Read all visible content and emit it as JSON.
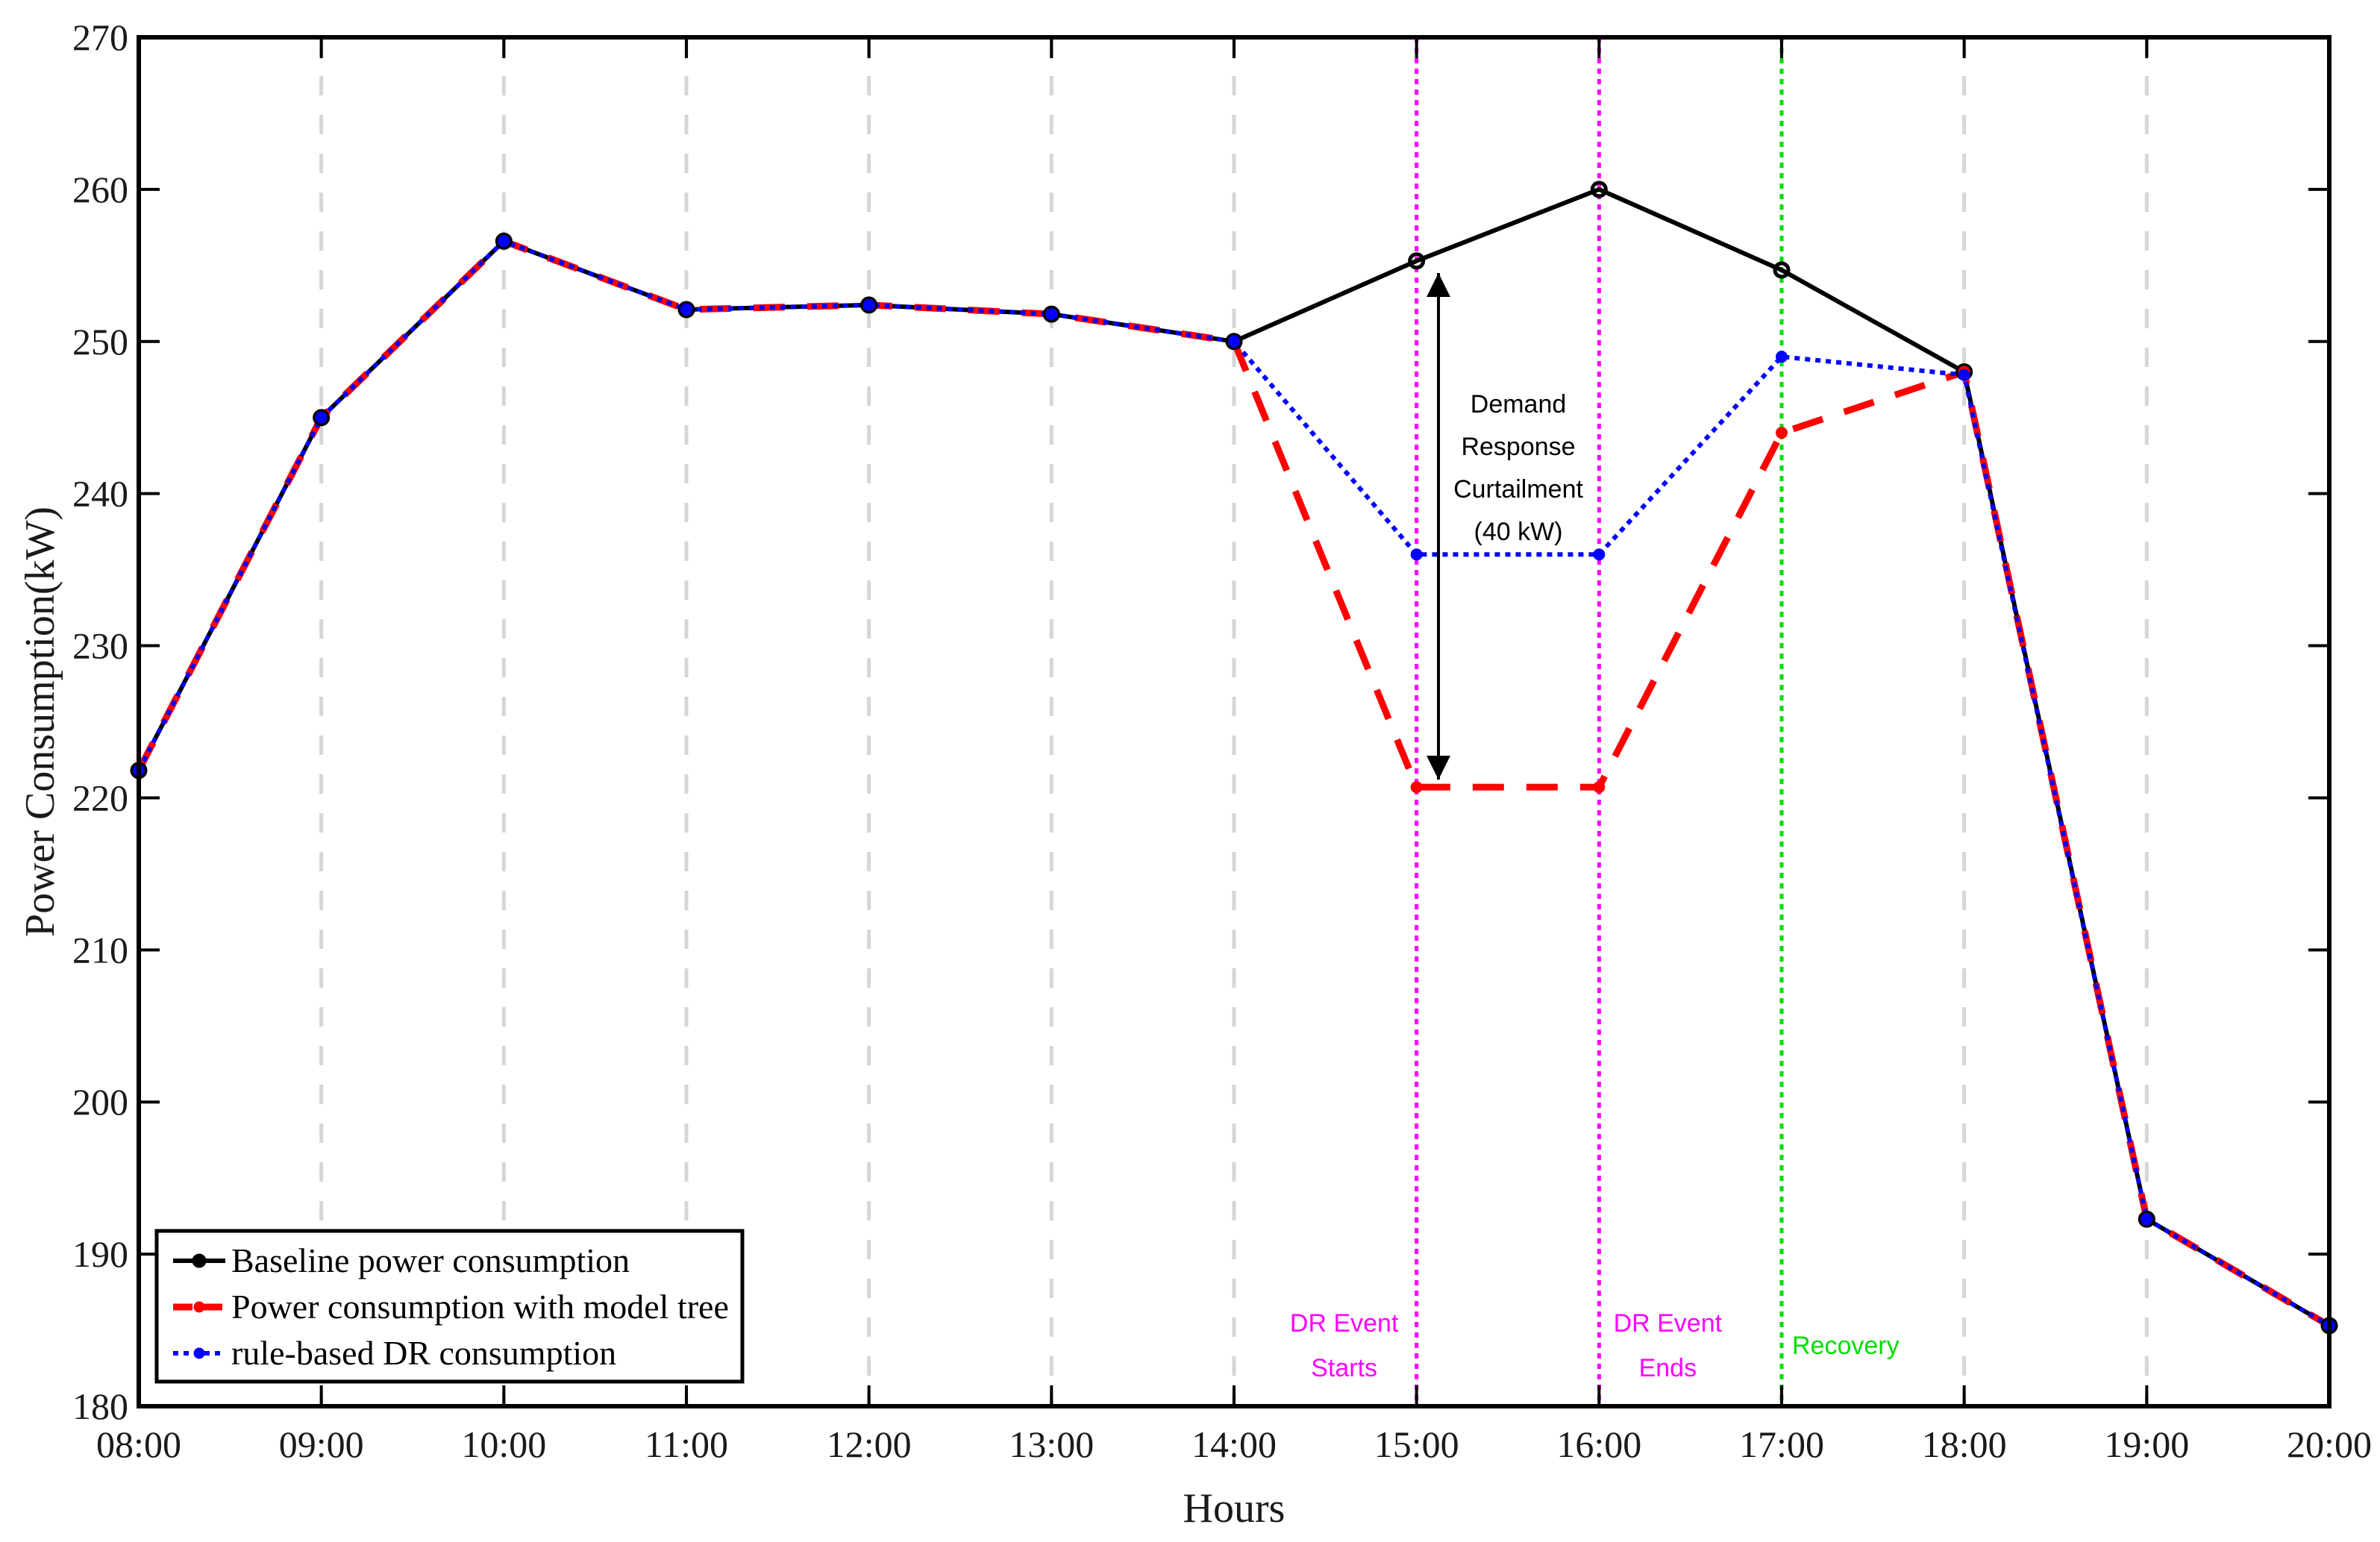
{
  "chart_data": {
    "type": "line",
    "title": "",
    "xlabel": "Hours",
    "ylabel": "Power Consumption(kW)",
    "categories": [
      "08:00",
      "09:00",
      "10:00",
      "11:00",
      "12:00",
      "13:00",
      "14:00",
      "15:00",
      "16:00",
      "17:00",
      "18:00",
      "19:00",
      "20:00"
    ],
    "ylim": [
      180,
      270
    ],
    "yticks": [
      180,
      190,
      200,
      210,
      220,
      230,
      240,
      250,
      260,
      270
    ],
    "grid": "vertical dashed",
    "series": [
      {
        "name": "Baseline power consumption",
        "color": "#000000",
        "style": "solid",
        "values": [
          221.8,
          245.0,
          256.6,
          252.1,
          252.4,
          251.8,
          250.0,
          255.3,
          260.0,
          254.7,
          248.0,
          192.3,
          185.3
        ]
      },
      {
        "name": "Power consumption with model tree",
        "color": "#ff0000",
        "style": "dashed",
        "values": [
          221.8,
          245.0,
          256.6,
          252.1,
          252.4,
          251.8,
          250.0,
          220.7,
          220.7,
          244.0,
          248.0,
          192.3,
          185.3
        ]
      },
      {
        "name": "rule-based DR consumption",
        "color": "#0000ff",
        "style": "dotted",
        "values": [
          221.8,
          245.0,
          256.6,
          252.1,
          252.4,
          251.8,
          250.0,
          236.0,
          236.0,
          249.0,
          247.8,
          192.3,
          185.3
        ]
      }
    ],
    "event_lines": [
      {
        "x": "15:00",
        "color": "#ff00ff",
        "label_lines": [
          "DR Event",
          "Starts"
        ]
      },
      {
        "x": "16:00",
        "color": "#ff00ff",
        "label_lines": [
          "DR Event",
          "Ends"
        ]
      },
      {
        "x": "17:00",
        "color": "#00dd00",
        "label_lines": [
          "Recovery"
        ]
      }
    ],
    "annotation": {
      "text_lines": [
        "Demand",
        "Response",
        "Curtailment",
        "(40 kW)"
      ],
      "x": 15.12,
      "y_top": 254.5,
      "y_bottom": 221.2,
      "color": "#000000"
    },
    "legend": {
      "position": "bottom-left",
      "entries": [
        "Baseline power consumption",
        "Power consumption with model tree",
        "rule-based DR consumption"
      ]
    }
  }
}
